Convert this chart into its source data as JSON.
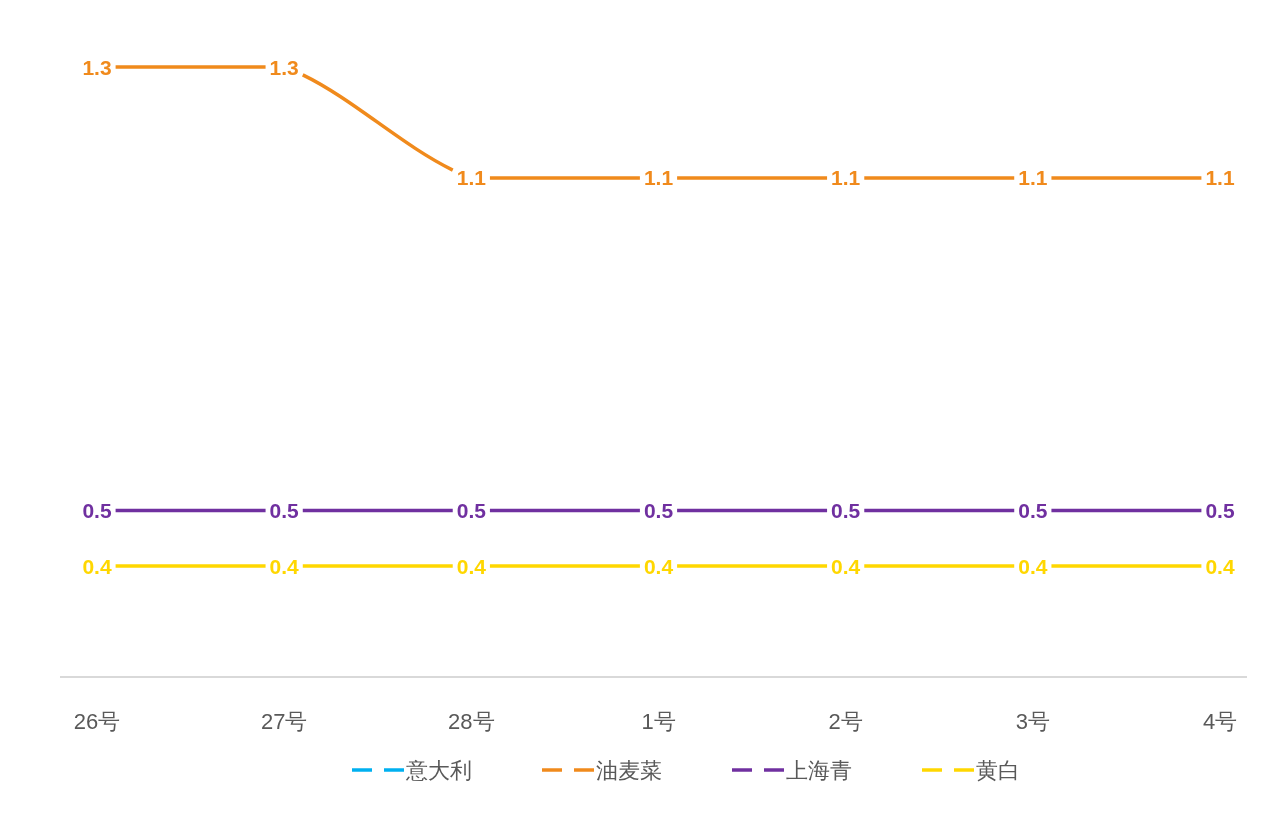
{
  "chart_data": {
    "type": "line",
    "categories": [
      "26号",
      "27号",
      "28号",
      "1号",
      "2号",
      "3号",
      "4号"
    ],
    "series": [
      {
        "name": "意大利",
        "color": "#00b0f0",
        "values": [
          null,
          null,
          null,
          null,
          null,
          null,
          null
        ]
      },
      {
        "name": "油麦菜",
        "color": "#f08a1c",
        "values": [
          1.3,
          1.3,
          1.1,
          1.1,
          1.1,
          1.1,
          1.1
        ]
      },
      {
        "name": "上海青",
        "color": "#7030a0",
        "values": [
          0.5,
          0.5,
          0.5,
          0.5,
          0.5,
          0.5,
          0.5
        ]
      },
      {
        "name": "黄白",
        "color": "#ffd700",
        "values": [
          0.4,
          0.4,
          0.4,
          0.4,
          0.4,
          0.4,
          0.4
        ]
      }
    ],
    "tick_labels": "x",
    "data_labels": true,
    "legend": "bottom",
    "marker": "none",
    "line_style": "solid"
  }
}
